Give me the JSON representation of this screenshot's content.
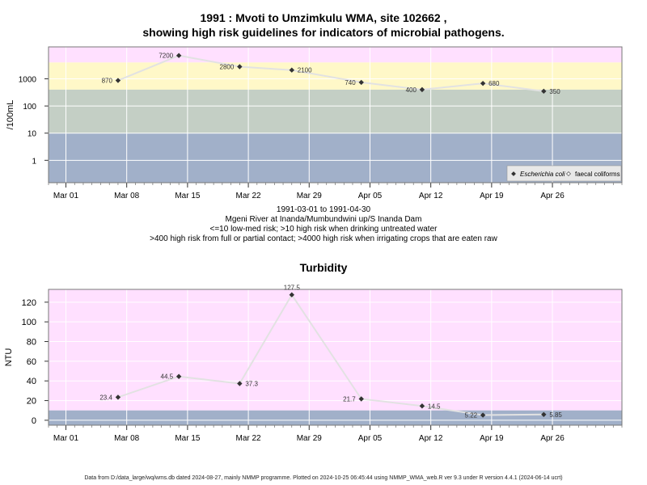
{
  "header": {
    "title_line1": "1991 : Mvoti to Umzimkulu WMA, site 102662 ,",
    "title_line2": "showing high risk guidelines for indicators of microbial pathogens."
  },
  "subtitle": {
    "line1": "1991-03-01 to 1991-04-30",
    "line2": "Mgeni River at Inanda/Mumbundwini up/S Inanda Dam",
    "line3": "<=10 low-med risk; >10 high risk when drinking untreated water",
    "line4": ">400 high risk from full or partial contact; >4000 high risk when irrigating crops that are eaten raw"
  },
  "footer": {
    "text": "Data from D:/data_large/wq/wms.db dated 2024-08-27, mainly NMMP programme. Plotted on 2024-10-25 06:45:44 using NMMP_WMA_web.R ver 9.3 under R version 4.4.1 (2024-06-14 ucrt)"
  },
  "colors": {
    "pink": "#ffe0ff",
    "yellow": "#fff8c8",
    "green": "#c4cfc5",
    "blue": "#a1b0c9",
    "line": "#e2e2e2",
    "point": "#333333",
    "grid": "#ffffff"
  },
  "chart_data": [
    {
      "type": "line",
      "title": "",
      "ylabel": "/100mL",
      "yscale": "log",
      "ylim": [
        0.15,
        15000
      ],
      "xlim": [
        "1991-02-27",
        "1991-05-04"
      ],
      "x_ticks": [
        "Mar 01",
        "Mar 08",
        "Mar 15",
        "Mar 22",
        "Mar 29",
        "Apr 05",
        "Apr 12",
        "Apr 19",
        "Apr 26"
      ],
      "x_tick_dates": [
        "1991-03-01",
        "1991-03-08",
        "1991-03-15",
        "1991-03-22",
        "1991-03-29",
        "1991-04-05",
        "1991-04-12",
        "1991-04-19",
        "1991-04-26"
      ],
      "y_ticks": [
        1,
        10,
        100,
        1000
      ],
      "y_tick_labels": [
        "1",
        "10",
        "100",
        "1000"
      ],
      "bands": [
        {
          "from": 4000,
          "to": 15000,
          "color": "pink"
        },
        {
          "from": 400,
          "to": 4000,
          "color": "yellow"
        },
        {
          "from": 10,
          "to": 400,
          "color": "green"
        },
        {
          "from": 0.15,
          "to": 10,
          "color": "blue"
        }
      ],
      "legend": {
        "position": "bottom-right",
        "items": [
          "Escherichia coli",
          "faecal coliforms"
        ]
      },
      "series": [
        {
          "name": "Escherichia coli",
          "x": [
            "1991-03-07",
            "1991-03-14",
            "1991-03-21",
            "1991-03-27",
            "1991-04-04",
            "1991-04-11",
            "1991-04-18",
            "1991-04-25"
          ],
          "values": [
            870,
            7200,
            2800,
            2100,
            740,
            400,
            680,
            350
          ],
          "labels": [
            "870",
            "7200",
            "2800",
            "2100",
            "740",
            "400",
            "680",
            "350"
          ]
        }
      ]
    },
    {
      "type": "line",
      "title": "Turbidity",
      "ylabel": "NTU",
      "ylim": [
        -5,
        133
      ],
      "xlim": [
        "1991-02-27",
        "1991-05-04"
      ],
      "x_ticks": [
        "Mar 01",
        "Mar 08",
        "Mar 15",
        "Mar 22",
        "Mar 29",
        "Apr 05",
        "Apr 12",
        "Apr 19",
        "Apr 26"
      ],
      "x_tick_dates": [
        "1991-03-01",
        "1991-03-08",
        "1991-03-15",
        "1991-03-22",
        "1991-03-29",
        "1991-04-05",
        "1991-04-12",
        "1991-04-19",
        "1991-04-26"
      ],
      "y_ticks": [
        0,
        20,
        40,
        60,
        80,
        100,
        120
      ],
      "y_tick_labels": [
        "0",
        "20",
        "40",
        "60",
        "80",
        "100",
        "120"
      ],
      "bands": [
        {
          "from": 10,
          "to": 133,
          "color": "pink"
        },
        {
          "from": -5,
          "to": 10,
          "color": "blue"
        }
      ],
      "series": [
        {
          "name": "",
          "x": [
            "1991-03-07",
            "1991-03-14",
            "1991-03-21",
            "1991-03-27",
            "1991-04-04",
            "1991-04-11",
            "1991-04-18",
            "1991-04-25"
          ],
          "values": [
            23.4,
            44.5,
            37.3,
            127.5,
            21.7,
            14.5,
            5.22,
            5.85
          ],
          "labels": [
            "23.4",
            "44.5",
            "37.3",
            "127.5",
            "21.7",
            "14.5",
            "5.22",
            "5.85"
          ]
        }
      ]
    }
  ]
}
